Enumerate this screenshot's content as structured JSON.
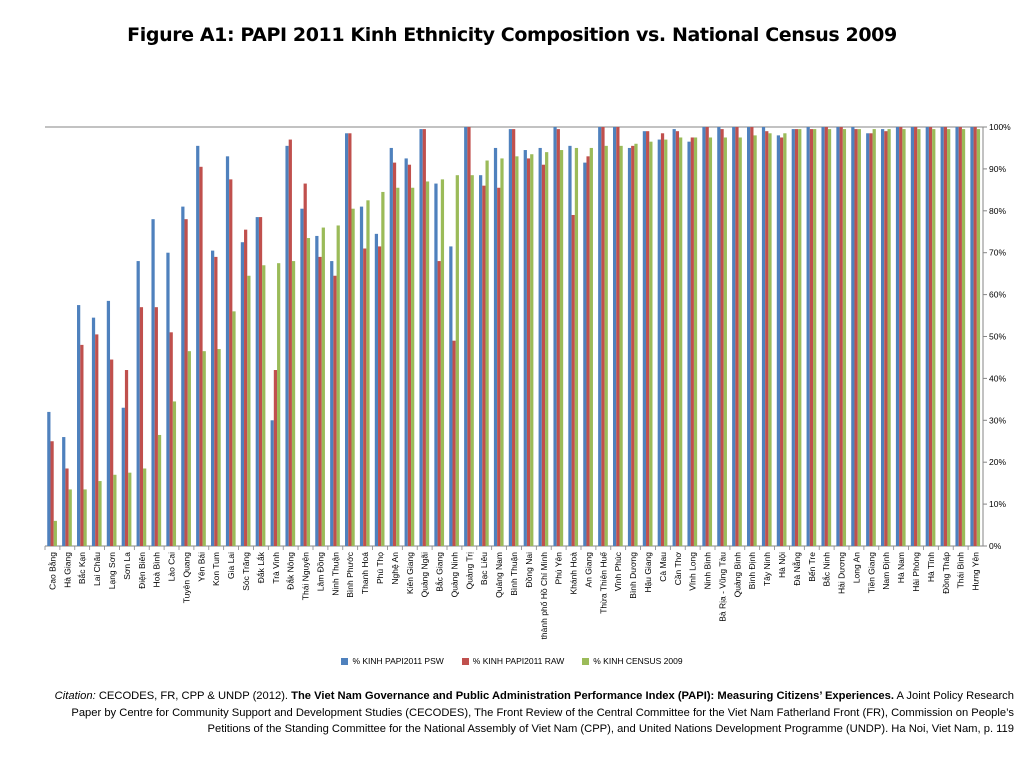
{
  "title": "Figure A1: PAPI 2011 Kinh Ethnicity Composition vs. National Census 2009",
  "legend": {
    "psw": "% KINH PAPI2011 PSW",
    "raw": "% KINH PAPI2011 RAW",
    "census": "% KINH CENSUS 2009"
  },
  "colors": {
    "psw": "#4f81bd",
    "raw": "#c0504d",
    "census": "#9bbb59"
  },
  "citation": {
    "label": "Citation:",
    "authors": " CECODES, FR, CPP & UNDP (2012). ",
    "book_title": "The Viet Nam Governance and Public Administration Performance Index (PAPI): Measuring Citizens’ Experiences.",
    "rest": " A Joint Policy Research Paper by Centre for Community Support and Development Studies (CECODES), The Front Review of the Central Committee for the Viet Nam Fatherland Front (FR), Commission on People’s Petitions of the Standing Committee for the National Assembly of Viet Nam (CPP), and United Nations Development Programme (UNDP). Ha Noi, Viet Nam, p. 119"
  },
  "chart_data": {
    "type": "bar",
    "ylim": [
      0,
      100
    ],
    "yticks": [
      "0%",
      "10%",
      "20%",
      "30%",
      "40%",
      "50%",
      "60%",
      "70%",
      "80%",
      "90%",
      "100%"
    ],
    "grid": false,
    "legend_position": "bottom",
    "categories": [
      "Cao Bằng",
      "Hà Giang",
      "Bắc Kạn",
      "Lai Châu",
      "Lạng Sơn",
      "Sơn La",
      "Điện Biên",
      "Hoà Bình",
      "Lào Cai",
      "Tuyên Quang",
      "Yên Bái",
      "Kon Tum",
      "Gia Lai",
      "Sóc Trăng",
      "Đắk Lắk",
      "Trà Vinh",
      "Đắk Nông",
      "Thái Nguyên",
      "Lâm Đồng",
      "Ninh Thuận",
      "Bình Phước",
      "Thanh Hoá",
      "Phú Thọ",
      "Nghệ An",
      "Kiên Giang",
      "Quảng Ngãi",
      "Bắc Giang",
      "Quảng Ninh",
      "Quảng Trị",
      "Bạc Liêu",
      "Quảng Nam",
      "Bình Thuận",
      "Đồng Nai",
      "thành phố Hồ Chí Minh",
      "Phú Yên",
      "Khánh Hoà",
      "An Giang",
      "Thừa Thiên Huế",
      "Vĩnh Phúc",
      "Bình Dương",
      "Hậu Giang",
      "Cà Mau",
      "Cần Thơ",
      "Vĩnh Long",
      "Ninh Bình",
      "Bà Rịa - Vũng Tàu",
      "Quảng Bình",
      "Bình Định",
      "Tây Ninh",
      "Hà Nội",
      "Đà Nẵng",
      "Bến Tre",
      "Bắc Ninh",
      "Hải Dương",
      "Long An",
      "Tiền Giang",
      "Nam Định",
      "Hà Nam",
      "Hải Phòng",
      "Hà Tĩnh",
      "Đồng Tháp",
      "Thái Bình",
      "Hưng Yên"
    ],
    "series": [
      {
        "name": "% KINH PAPI2011 PSW",
        "values": [
          32,
          26,
          57.5,
          54.5,
          58.5,
          33,
          68,
          78,
          70,
          81,
          95.5,
          70.5,
          93,
          72.5,
          78.5,
          30,
          95.5,
          80.5,
          74,
          68,
          98.5,
          81,
          74.5,
          95,
          92.5,
          99.5,
          86.5,
          71.5,
          100,
          88.5,
          95,
          99.5,
          94.5,
          95,
          100,
          95.5,
          91.5,
          100,
          100,
          95,
          99,
          97,
          99.5,
          96.5,
          100,
          100,
          100,
          100,
          100,
          98,
          99.5,
          100,
          100,
          100,
          100,
          98.5,
          99.5,
          100,
          100,
          100,
          100,
          100,
          100
        ]
      },
      {
        "name": "% KINH PAPI2011 RAW",
        "values": [
          25,
          18.5,
          48,
          50.5,
          44.5,
          42,
          57,
          57,
          51,
          78,
          90.5,
          69,
          87.5,
          75.5,
          78.5,
          42,
          97,
          86.5,
          69,
          64.5,
          98.5,
          71,
          71.5,
          91.5,
          91,
          99.5,
          68,
          49,
          100,
          86,
          85.5,
          99.5,
          92.5,
          91,
          99.5,
          79,
          93,
          100,
          100,
          95.5,
          99,
          98.5,
          99,
          97.5,
          100,
          99.5,
          100,
          100,
          99,
          97.5,
          99.5,
          99.5,
          100,
          100,
          99.5,
          98.5,
          99,
          100,
          100,
          100,
          100,
          100,
          100
        ]
      },
      {
        "name": "% KINH CENSUS 2009",
        "values": [
          6,
          13.5,
          13.5,
          15.5,
          17,
          17.5,
          18.5,
          26.5,
          34.5,
          46.5,
          46.5,
          47,
          56,
          64.5,
          67,
          67.5,
          68,
          73.5,
          76,
          76.5,
          80.5,
          82.5,
          84.5,
          85.5,
          85.5,
          87,
          87.5,
          88.5,
          88.5,
          92,
          92.5,
          93,
          93.5,
          94,
          94.5,
          95,
          95,
          95.5,
          95.5,
          96,
          96.5,
          97,
          97.5,
          97.5,
          97.5,
          97.5,
          97.5,
          98,
          98.5,
          98.5,
          99.5,
          99.5,
          99.5,
          99.5,
          99.5,
          99.5,
          99.5,
          99.5,
          99.5,
          99.5,
          99.5,
          99.5,
          99.5
        ]
      }
    ]
  }
}
